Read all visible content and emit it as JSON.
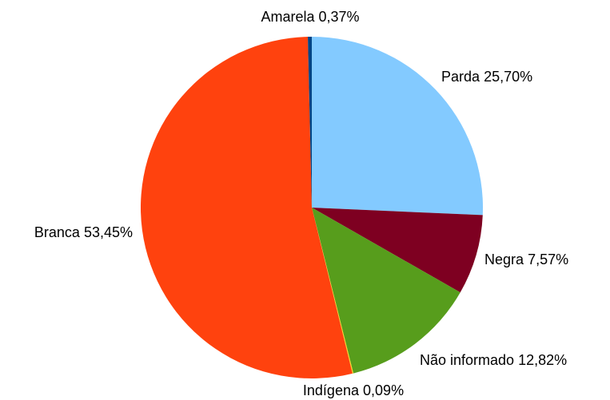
{
  "chart_data": {
    "type": "pie",
    "categories": [
      "Parda",
      "Negra",
      "Não informado",
      "Indígena",
      "Branca",
      "Amarela"
    ],
    "values": [
      25.7,
      7.57,
      12.82,
      0.09,
      53.45,
      0.37
    ],
    "value_labels": [
      "25,70%",
      "7,57%",
      "12,82%",
      "0,09%",
      "53,45%",
      "0,37%"
    ],
    "colors": [
      "#83caff",
      "#7e0021",
      "#579d1c",
      "#ffd320",
      "#ff420e",
      "#004586"
    ]
  }
}
